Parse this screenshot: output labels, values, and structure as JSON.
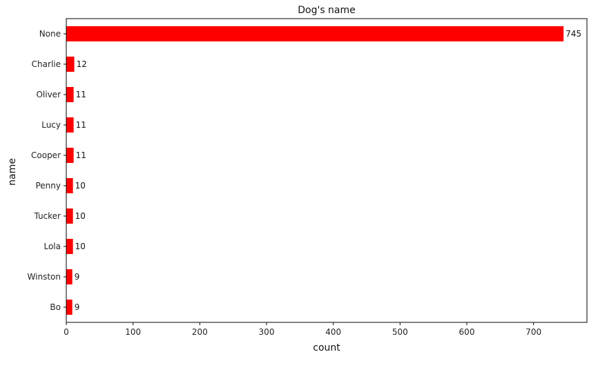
{
  "chart_data": {
    "type": "bar",
    "orientation": "horizontal",
    "title": "Dog's name",
    "xlabel": "count",
    "ylabel": "name",
    "categories": [
      "None",
      "Charlie",
      "Oliver",
      "Lucy",
      "Cooper",
      "Penny",
      "Tucker",
      "Lola",
      "Winston",
      "Bo"
    ],
    "values": [
      745,
      12,
      11,
      11,
      11,
      10,
      10,
      10,
      9,
      9
    ],
    "data_labels": [
      "745",
      "12",
      "11",
      "11",
      "11",
      "10",
      "10",
      "10",
      "9",
      "9"
    ],
    "xlim": [
      0,
      780
    ],
    "xticks": [
      0,
      100,
      200,
      300,
      400,
      500,
      600,
      700
    ],
    "xtick_labels": [
      "0",
      "100",
      "200",
      "300",
      "400",
      "500",
      "600",
      "700"
    ],
    "bar_color": "#ff0000",
    "grid": false,
    "legend": "none"
  }
}
